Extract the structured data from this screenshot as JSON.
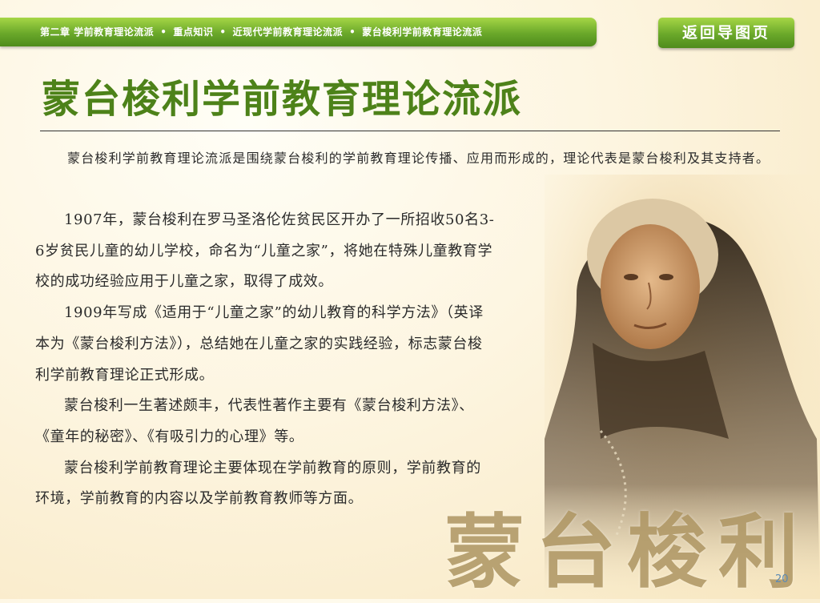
{
  "breadcrumb": {
    "items": [
      "第二章 学前教育理论流派",
      "重点知识",
      "近现代学前教育理论流派",
      "蒙台梭利学前教育理论流派"
    ],
    "separator": "•"
  },
  "back_button": {
    "label": "返回导图页"
  },
  "page_title": "蒙台梭利学前教育理论流派",
  "intro": "蒙台梭利学前教育理论流派是围绕蒙台梭利的学前教育理论传播、应用而形成的，理论代表是蒙台梭利及其支持者。",
  "paragraphs": [
    "1907年，蒙台梭利在罗马圣洛伦佐贫民区开办了一所招收50名3-6岁贫民儿童的幼儿学校，命名为“儿童之家”，将她在特殊儿童教育学校的成功经验应用于儿童之家，取得了成效。",
    "1909年写成《适用于“儿童之家”的幼儿教育的科学方法》（英译本为《蒙台梭利方法》），总结她在儿童之家的实践经验，标志蒙台梭利学前教育理论正式形成。",
    "蒙台梭利一生著述颇丰，代表性著作主要有《蒙台梭利方法》、《童年的秘密》、《有吸引力的心理》等。",
    "蒙台梭利学前教育理论主要体现在学前教育的原则，学前教育的环境，学前教育的内容以及学前教育教师等方面。"
  ],
  "watermark": "蒙台梭利",
  "page_number": "20",
  "colors": {
    "green": "#4d8219",
    "bar": "#6aa82a",
    "watermark": "#b09866"
  }
}
